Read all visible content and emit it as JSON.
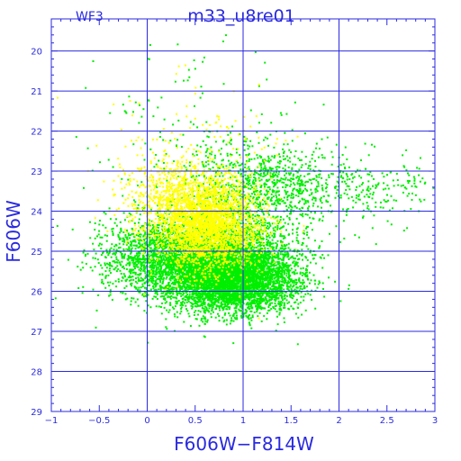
{
  "chart_data": {
    "type": "scatter",
    "title": "m33_u8re01",
    "chip_label": "WF3",
    "xlabel": "F606W−F814W",
    "ylabel": "F606W",
    "xlim": [
      -1,
      3
    ],
    "ylim": [
      29,
      19.2
    ],
    "y_inverted": true,
    "grid": true,
    "x_ticks": [
      -1,
      -0.5,
      0,
      0.5,
      1,
      1.5,
      2,
      2.5,
      3
    ],
    "x_tick_labels": [
      "−1",
      "−0.5",
      "0",
      "0.5",
      "1",
      "1.5",
      "2",
      "2.5",
      "3"
    ],
    "y_ticks": [
      20,
      21,
      22,
      23,
      24,
      25,
      26,
      27,
      28,
      29
    ],
    "y_tick_labels": [
      "20",
      "21",
      "22",
      "23",
      "24",
      "25",
      "26",
      "27",
      "28",
      "29"
    ],
    "series": [
      {
        "color": "#00ee00",
        "clumps": [
          {
            "x": 0.75,
            "y": 25.3,
            "sx": 0.38,
            "sy": 0.55,
            "n": 4200
          },
          {
            "x": 0.95,
            "y": 25.8,
            "sx": 0.32,
            "sy": 0.35,
            "n": 2200
          },
          {
            "x": 0.05,
            "y": 25.1,
            "sx": 0.3,
            "sy": 0.5,
            "n": 1100
          },
          {
            "x": 1.15,
            "y": 23.4,
            "sx": 0.38,
            "sy": 0.6,
            "n": 900
          },
          {
            "x": 2.1,
            "y": 23.4,
            "sx": 0.55,
            "sy": 0.45,
            "n": 320
          },
          {
            "x": 0.5,
            "y": 22.0,
            "sx": 0.55,
            "sy": 1.0,
            "n": 140
          }
        ]
      },
      {
        "color": "#ffff00",
        "clumps": [
          {
            "x": 0.62,
            "y": 24.3,
            "sx": 0.28,
            "sy": 0.55,
            "n": 2600
          },
          {
            "x": 0.3,
            "y": 23.6,
            "sx": 0.28,
            "sy": 0.55,
            "n": 600
          },
          {
            "x": 0.55,
            "y": 22.5,
            "sx": 0.45,
            "sy": 0.9,
            "n": 120
          }
        ]
      }
    ]
  }
}
